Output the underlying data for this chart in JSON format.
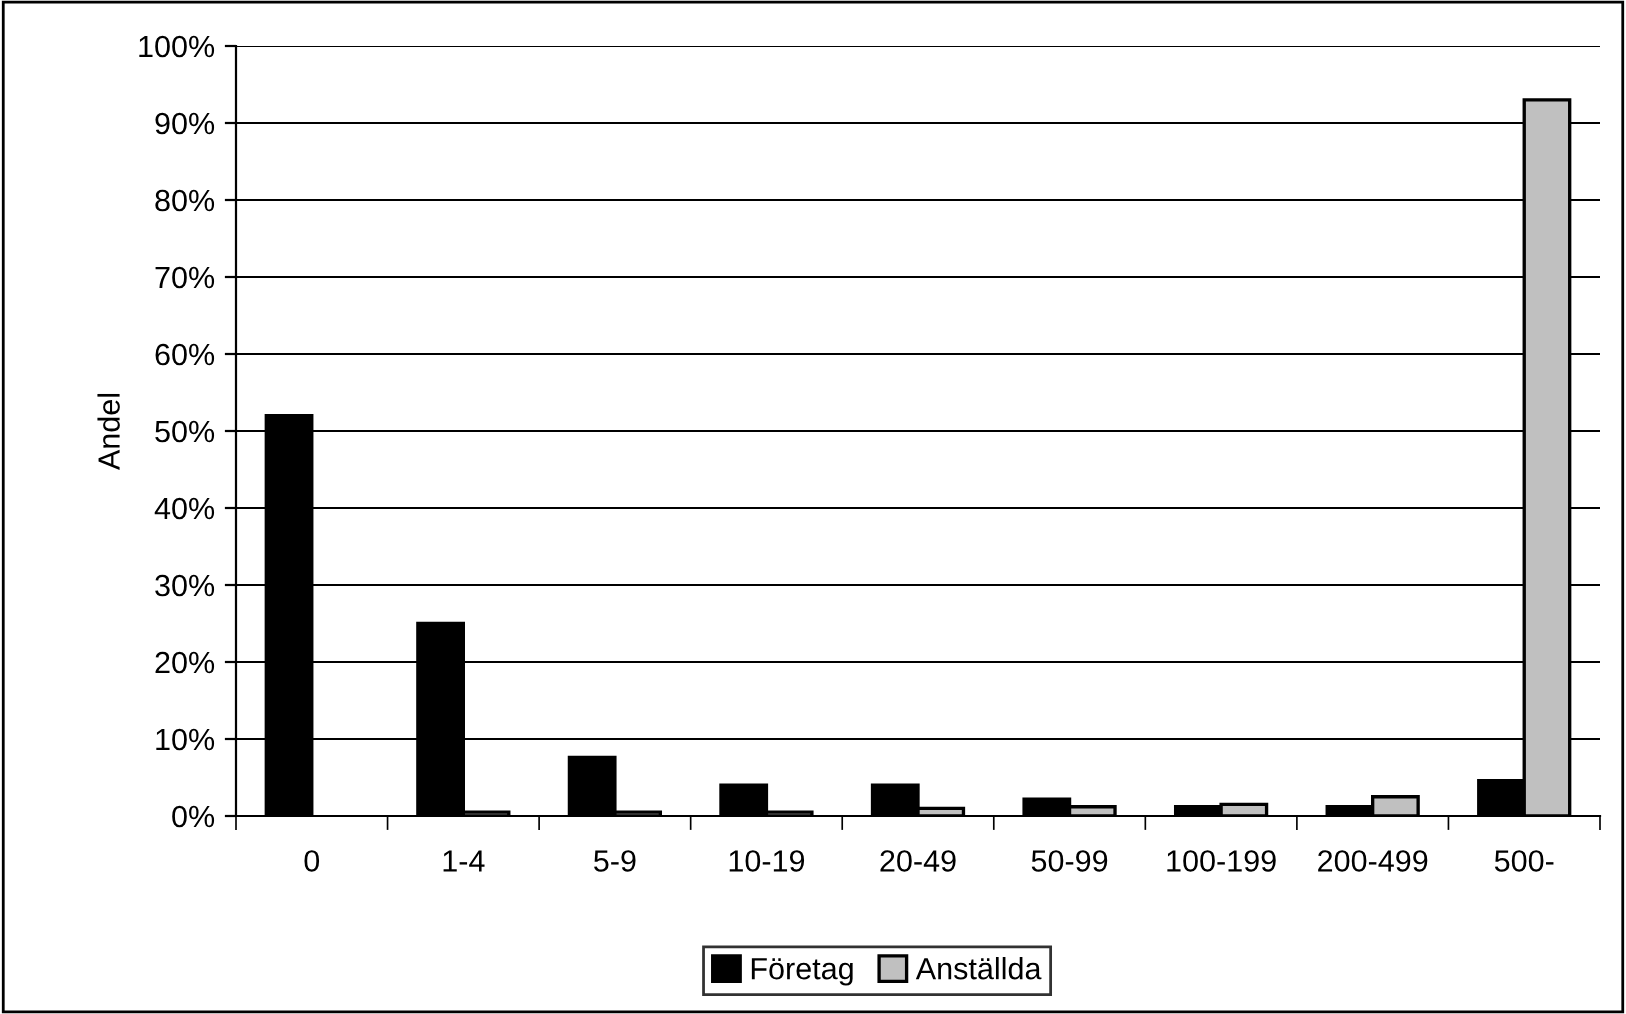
{
  "chart_data": {
    "type": "bar",
    "ylabel": "Andel",
    "categories": [
      "0",
      "1-4",
      "5-9",
      "10-19",
      "20-49",
      "50-99",
      "100-199",
      "200-499",
      "500-"
    ],
    "series": [
      {
        "name": "Företag",
        "color": "#000000",
        "values": [
          52,
          25,
          7.6,
          4.0,
          4.0,
          2.2,
          1.2,
          1.2,
          4.6
        ]
      },
      {
        "name": "Anställda",
        "color": "#c0c0c0",
        "values": [
          null,
          0.5,
          0.5,
          0.5,
          1.0,
          1.2,
          1.5,
          2.5,
          93
        ]
      }
    ],
    "ylim": [
      0,
      100
    ],
    "yticks": [
      {
        "value": 0,
        "label": "0%"
      },
      {
        "value": 10,
        "label": "10%"
      },
      {
        "value": 20,
        "label": "20%"
      },
      {
        "value": 30,
        "label": "30%"
      },
      {
        "value": 40,
        "label": "40%"
      },
      {
        "value": 50,
        "label": "50%"
      },
      {
        "value": 60,
        "label": "60%"
      },
      {
        "value": 70,
        "label": "70%"
      },
      {
        "value": 80,
        "label": "80%"
      },
      {
        "value": 90,
        "label": "90%"
      },
      {
        "value": 100,
        "label": "100%"
      }
    ],
    "grid": "y",
    "legend": "bottom"
  }
}
